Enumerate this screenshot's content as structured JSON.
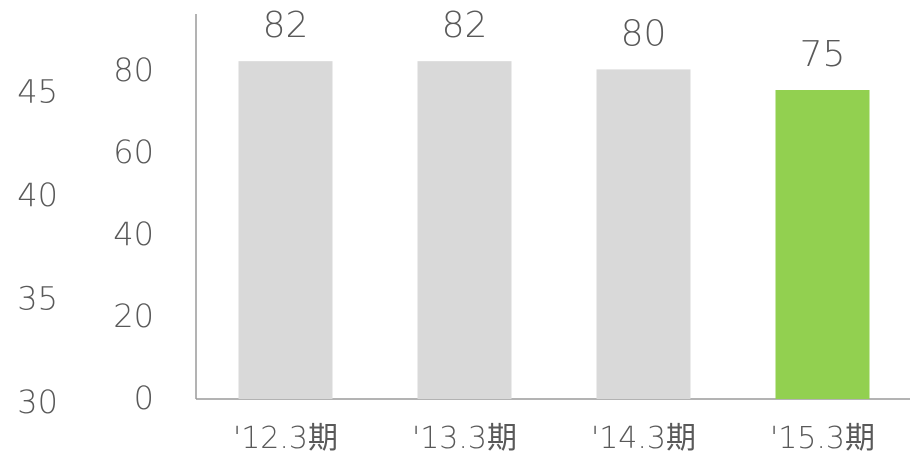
{
  "chart_data": {
    "type": "bar",
    "title": "",
    "xlabel": "",
    "ylabel": "",
    "categories": [
      "'12.3期",
      "'13.3期",
      "'14.3期",
      "'15.3期"
    ],
    "values": [
      82,
      82,
      80,
      75
    ],
    "data_labels": [
      "82",
      "82",
      "80",
      "75"
    ],
    "ylim": [
      0,
      100
    ],
    "yticks": [
      "0",
      "20",
      "40",
      "60",
      "80"
    ],
    "secondary_yticks": [
      "30",
      "35",
      "40",
      "45"
    ],
    "grid": false,
    "legend": "none",
    "colors": {
      "default_bar": "#d9d9d9",
      "highlight_bar": "#92d050",
      "axis_line": "#9a9a9a",
      "text": "#595959"
    },
    "highlight_index": 3
  }
}
